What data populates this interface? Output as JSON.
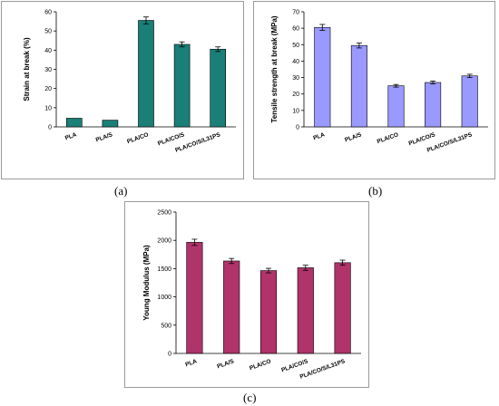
{
  "chart_data": [
    {
      "type": "bar",
      "panel_label": "(a)",
      "categories": [
        "PLA",
        "PLA/S",
        "PLA/CO",
        "PLA/CO/S",
        "PLA/CO/S/L31PS"
      ],
      "values": [
        4.5,
        3.5,
        55.5,
        43,
        40.5
      ],
      "errors": [
        0,
        0,
        1.8,
        1.3,
        1.2
      ],
      "title": "",
      "xlabel": "",
      "ylabel": "Strain at break (%)",
      "ylim": [
        0,
        60
      ],
      "yticks": [
        0,
        10,
        20,
        30,
        40,
        50,
        60
      ],
      "bar_color": "#1a7f77",
      "grid": false
    },
    {
      "type": "bar",
      "panel_label": "(b)",
      "categories": [
        "PLA",
        "PLA/S",
        "PLA/CO",
        "PLA/CO/S",
        "PLA/CO/S/L31PS"
      ],
      "values": [
        60.5,
        49.5,
        25,
        27,
        31
      ],
      "errors": [
        1.8,
        1.5,
        0.8,
        0.9,
        1.0
      ],
      "title": "",
      "xlabel": "",
      "ylabel": "Tensile strength at break (MPa)",
      "ylim": [
        0,
        70
      ],
      "yticks": [
        0,
        10,
        20,
        30,
        40,
        50,
        60,
        70
      ],
      "bar_color": "#9999ff",
      "grid": false
    },
    {
      "type": "bar",
      "panel_label": "(c)",
      "categories": [
        "PLA",
        "PLA/S",
        "PLA/CO",
        "PLA/CO/S",
        "PLA/CO/S/L31PS"
      ],
      "values": [
        1965,
        1635,
        1465,
        1515,
        1605
      ],
      "errors": [
        55,
        45,
        40,
        45,
        45
      ],
      "title": "",
      "xlabel": "",
      "ylabel": "Young Modulus (MPa)",
      "ylim": [
        0,
        2500
      ],
      "yticks": [
        0,
        500,
        1000,
        1500,
        2000,
        2500
      ],
      "bar_color": "#b0336a",
      "grid": false
    }
  ]
}
